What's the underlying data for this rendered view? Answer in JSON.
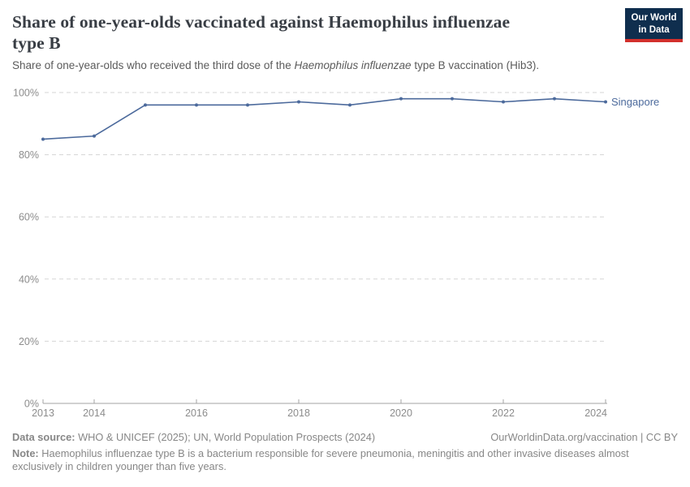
{
  "header": {
    "title_lines": [
      "Share of one-year-olds vaccinated against Haemophilus influenzae",
      "type B"
    ],
    "subtitle_prefix": "Share of one-year-olds who received the third dose of the ",
    "subtitle_italic": "Haemophilus influenzae",
    "subtitle_suffix": " type B vaccination (Hib3).",
    "logo": {
      "line1": "Our World",
      "line2": "in Data",
      "bg_color": "#0f2e4e",
      "accent_color": "#d2302c"
    }
  },
  "chart_data": {
    "type": "line",
    "title": "Share of one-year-olds vaccinated against Haemophilus influenzae type B",
    "x": [
      2013,
      2014,
      2015,
      2016,
      2017,
      2018,
      2019,
      2020,
      2021,
      2022,
      2023,
      2024
    ],
    "series": [
      {
        "name": "Singapore",
        "values": [
          85,
          86,
          96,
          96,
          96,
          97,
          96,
          98,
          98,
          97,
          98,
          97
        ],
        "color": "#4c6a9c"
      }
    ],
    "ylim": [
      0,
      100
    ],
    "yticks": [
      0,
      20,
      40,
      60,
      80,
      100
    ],
    "ytick_format": "{}%",
    "xticks": [
      2013,
      2014,
      2016,
      2018,
      2020,
      2022,
      2024
    ],
    "grid": "horizontal-dashed",
    "legend": "end-of-line-label",
    "grid_color": "#d5d5d5",
    "axis_color": "#a3a3a3",
    "tick_label_color": "#8c8c8c"
  },
  "footer": {
    "datasource_label": "Data source:",
    "datasource_text": " WHO & UNICEF (2025); UN, World Population Prospects (2024)",
    "rights": "OurWorldinData.org/vaccination | CC BY",
    "note_label": "Note:",
    "note_text": " Haemophilus influenzae type B is a bacterium responsible for severe pneumonia, meningitis and other invasive diseases almost exclusively in children younger than five years."
  }
}
